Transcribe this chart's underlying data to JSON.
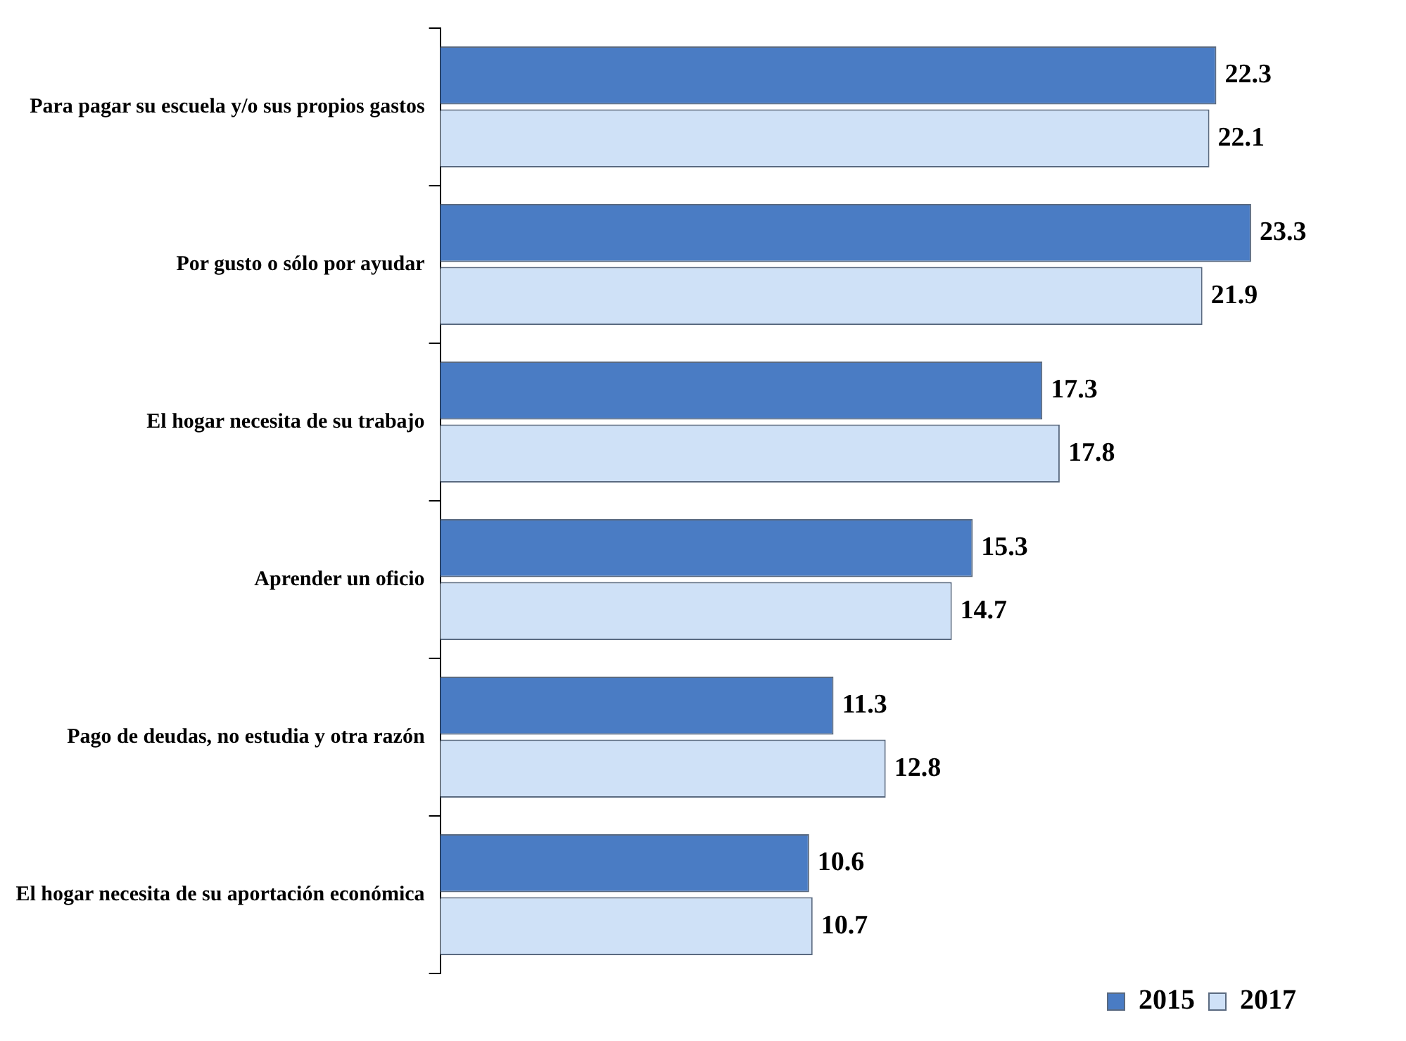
{
  "chart_data": {
    "type": "bar",
    "orientation": "horizontal",
    "categories": [
      "Para pagar su escuela y/o sus propios gastos",
      "Por gusto o sólo por ayudar",
      "El hogar necesita de su trabajo",
      "Aprender un oficio",
      "Pago de deudas, no estudia y otra razón",
      "El hogar necesita de su aportación económica"
    ],
    "series": [
      {
        "name": "2015",
        "color": "#4a7cc4",
        "values": [
          22.3,
          23.3,
          17.3,
          15.3,
          11.3,
          10.6
        ]
      },
      {
        "name": "2017",
        "color": "#cfe1f7",
        "values": [
          22.1,
          21.9,
          17.8,
          14.7,
          12.8,
          10.7
        ]
      }
    ],
    "tick_labels": "y",
    "data_labels": true,
    "legend": "bottom right",
    "grid": false
  }
}
